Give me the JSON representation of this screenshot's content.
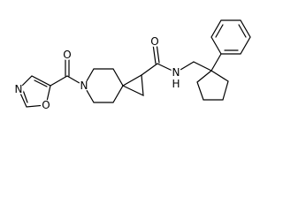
{
  "atoms": [
    {
      "label": "O"
    },
    {
      "label": "N"
    },
    {
      "label": "O"
    },
    {
      "label": "N"
    },
    {
      "label": "O"
    },
    {
      "label": "N"
    },
    {
      "label": "H"
    }
  ]
}
